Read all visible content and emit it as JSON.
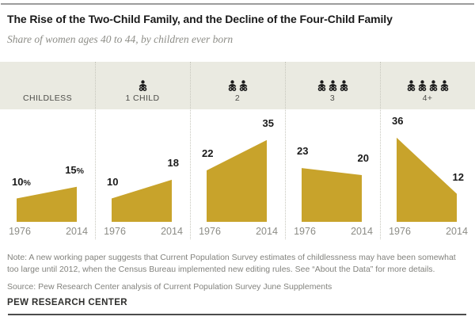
{
  "header": {
    "title": "The Rise of the Two-Child Family, and the Decline of the Four-Child Family",
    "subtitle": "Share of women ages 40 to 44, by children ever born"
  },
  "chart_data": {
    "type": "area",
    "x": [
      1976,
      2014
    ],
    "x_labels": [
      "1976",
      "2014"
    ],
    "categories": [
      "CHILDLESS",
      "1 CHILD",
      "2",
      "3",
      "4+"
    ],
    "series": [
      {
        "name": "CHILDLESS",
        "children_icons": 0,
        "values": [
          10,
          15
        ],
        "display": [
          "10",
          "15"
        ],
        "suffix": "%"
      },
      {
        "name": "1 CHILD",
        "children_icons": 1,
        "values": [
          10,
          18
        ],
        "display": [
          "10",
          "18"
        ],
        "suffix": ""
      },
      {
        "name": "2",
        "children_icons": 2,
        "values": [
          22,
          35
        ],
        "display": [
          "22",
          "35"
        ],
        "suffix": ""
      },
      {
        "name": "3",
        "children_icons": 3,
        "values": [
          23,
          20
        ],
        "display": [
          "23",
          "20"
        ],
        "suffix": ""
      },
      {
        "name": "4+",
        "children_icons": 4,
        "values": [
          36,
          12
        ],
        "display": [
          "36",
          "12"
        ],
        "suffix": ""
      }
    ],
    "units": "percent of women ages 40 to 44",
    "area_color": "#c8a32b",
    "band_background": "#eaeae1",
    "icon_glyph": "baby-icon",
    "legend_position": "none",
    "grid": false
  },
  "footer": {
    "note": "Note: A new working paper suggests that Current Population Survey estimates of childlessness may have been somewhat too large until 2012, when the Census Bureau implemented new editing rules. See “About the Data” for more details.",
    "source": "Source: Pew Research Center analysis of Current Population Survey June Supplements",
    "brand": "PEW RESEARCH CENTER"
  }
}
